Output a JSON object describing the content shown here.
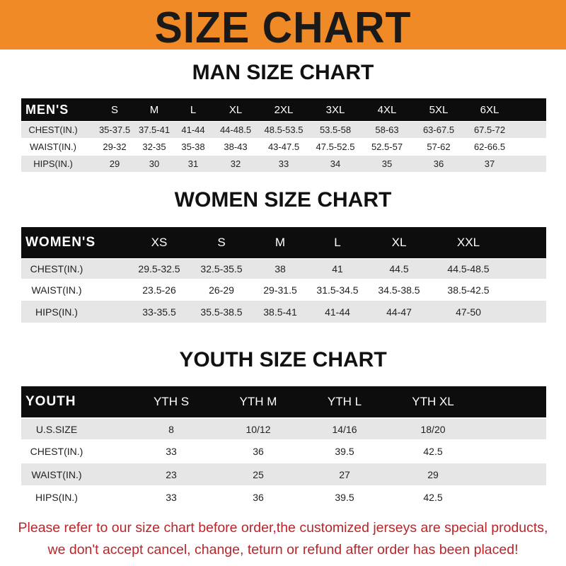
{
  "banner_title": "SIZE CHART",
  "men": {
    "title": "MAN SIZE CHART",
    "header": [
      "MEN'S",
      "S",
      "M",
      "L",
      "XL",
      "2XL",
      "3XL",
      "4XL",
      "5XL",
      "6XL"
    ],
    "rows": [
      [
        "CHEST(IN.)",
        "35-37.5",
        "37.5-41",
        "41-44",
        "44-48.5",
        "48.5-53.5",
        "53.5-58",
        "58-63",
        "63-67.5",
        "67.5-72"
      ],
      [
        "WAIST(IN.)",
        "29-32",
        "32-35",
        "35-38",
        "38-43",
        "43-47.5",
        "47.5-52.5",
        "52.5-57",
        "57-62",
        "62-66.5"
      ],
      [
        "HIPS(IN.)",
        "29",
        "30",
        "31",
        "32",
        "33",
        "34",
        "35",
        "36",
        "37"
      ]
    ]
  },
  "women": {
    "title": "WOMEN SIZE CHART",
    "header": [
      "WOMEN'S",
      "XS",
      "S",
      "M",
      "L",
      "XL",
      "XXL"
    ],
    "rows": [
      [
        "CHEST(IN.)",
        "29.5-32.5",
        "32.5-35.5",
        "38",
        "41",
        "44.5",
        "44.5-48.5"
      ],
      [
        "WAIST(IN.)",
        "23.5-26",
        "26-29",
        "29-31.5",
        "31.5-34.5",
        "34.5-38.5",
        "38.5-42.5"
      ],
      [
        "HIPS(IN.)",
        "33-35.5",
        "35.5-38.5",
        "38.5-41",
        "41-44",
        "44-47",
        "47-50"
      ]
    ]
  },
  "youth": {
    "title": "YOUTH SIZE CHART",
    "header": [
      "YOUTH",
      "YTH S",
      "YTH M",
      "YTH L",
      "YTH XL"
    ],
    "rows": [
      [
        "U.S.SIZE",
        "8",
        "10/12",
        "14/16",
        "18/20"
      ],
      [
        "CHEST(IN.)",
        "33",
        "36",
        "39.5",
        "42.5"
      ],
      [
        "WAIST(IN.)",
        "23",
        "25",
        "27",
        "29"
      ],
      [
        "HIPS(IN.)",
        "33",
        "36",
        "39.5",
        "42.5"
      ]
    ]
  },
  "notice": {
    "line1": "Please refer to our size chart before order,the customized jerseys are special products,",
    "line2": "we don't accept cancel, change, teturn or refund after order has been placed!"
  },
  "colors": {
    "banner": "#ef8a26",
    "header_row": "#0d0d0d",
    "stripe": "#e6e6e6",
    "notice": "#b8262b"
  }
}
